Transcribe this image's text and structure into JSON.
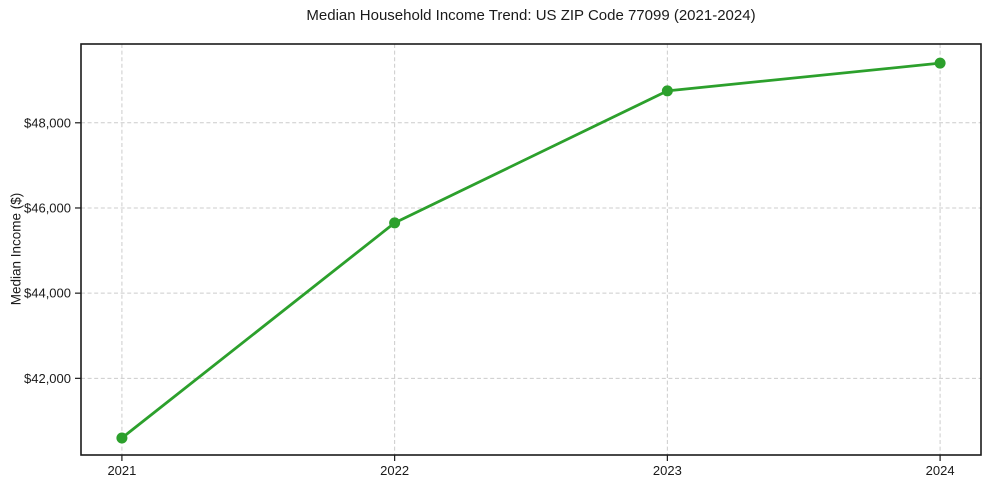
{
  "chart_data": {
    "type": "line",
    "title": "Median Household Income Trend: US ZIP Code 77099 (2021-2024)",
    "xlabel": "",
    "ylabel": "Median Income ($)",
    "categories": [
      "2021",
      "2022",
      "2023",
      "2024"
    ],
    "x": [
      2021,
      2022,
      2023,
      2024
    ],
    "values": [
      40600,
      45650,
      48750,
      49400
    ],
    "x_tick_labels": [
      "2021",
      "2022",
      "2023",
      "2024"
    ],
    "y_ticks": [
      42000,
      44000,
      46000,
      48000
    ],
    "y_tick_labels": [
      "$42,000",
      "$44,000",
      "$46,000",
      "$48,000"
    ],
    "xlim": [
      2020.85,
      2024.15
    ],
    "ylim": [
      40200,
      49850
    ],
    "grid": true,
    "grid_style": "dashed",
    "legend_position": "none",
    "marker": "circle",
    "colors": {
      "line": "#2ca02c",
      "marker": "#2ca02c",
      "grid": "#cccccc",
      "axis": "#1a1a1a",
      "text": "#1a1a1a",
      "background": "#ffffff"
    }
  }
}
